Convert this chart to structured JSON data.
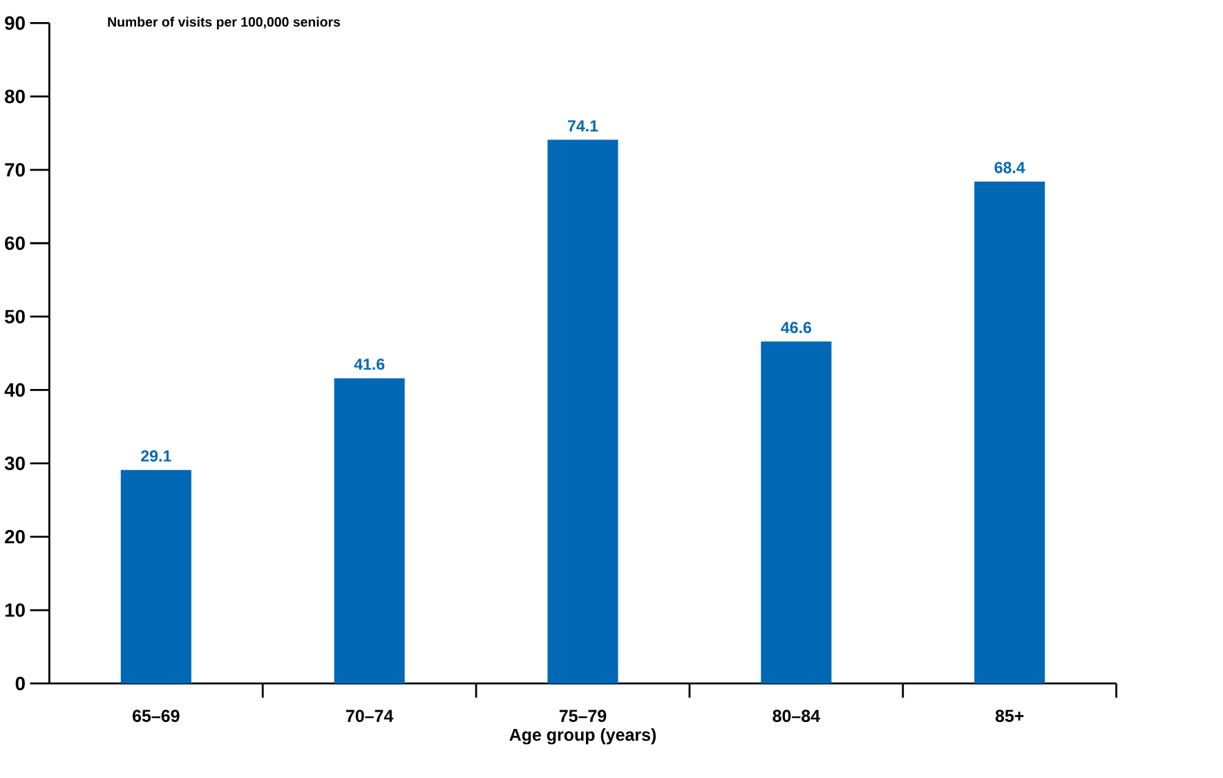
{
  "chart_data": {
    "type": "bar",
    "ylabel": "Number of visits per 100,000 seniors",
    "xlabel": "Age group (years)",
    "categories": [
      "65–69",
      "70–74",
      "75–79",
      "80–84",
      "85+"
    ],
    "values": [
      29.1,
      41.6,
      74.1,
      46.6,
      68.4
    ],
    "color": "#0068b5",
    "data_labels": true,
    "ylim": [
      0,
      90
    ],
    "yticks": [
      0,
      10,
      20,
      30,
      40,
      50,
      60,
      70,
      80,
      90
    ],
    "grid": false
  }
}
